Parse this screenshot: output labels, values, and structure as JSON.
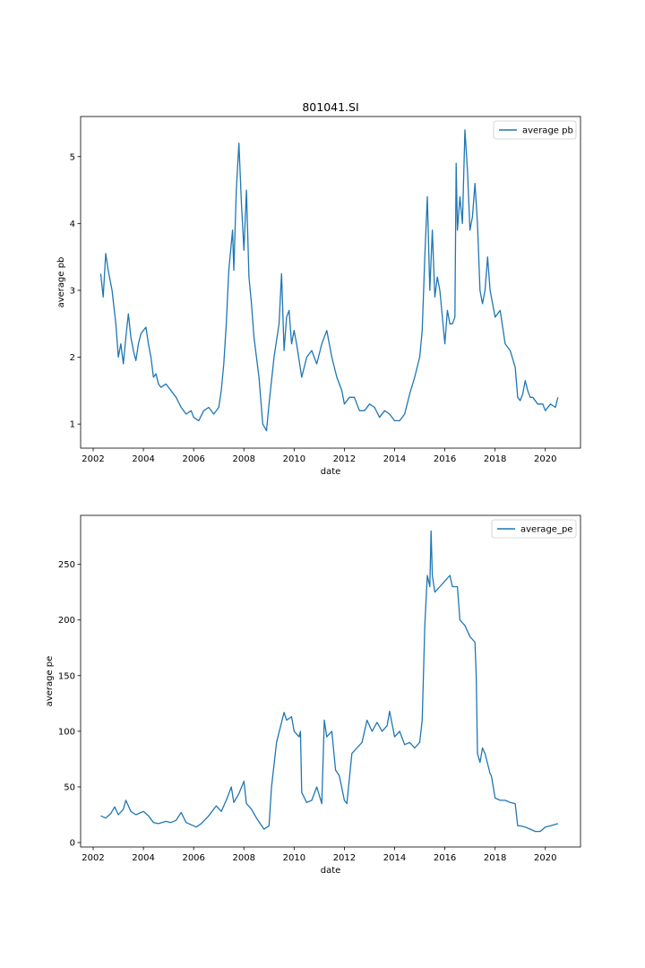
{
  "figure_title": "801041.SI",
  "line_color": "#1f77b4",
  "chart_data": [
    {
      "type": "line",
      "title": "801041.SI",
      "xlabel": "date",
      "ylabel": "average pb",
      "legend": "top-right",
      "grid": false,
      "xlim": [
        2001.5,
        2021.4
      ],
      "ylim": [
        0.64,
        5.6
      ],
      "xticks": [
        2002,
        2004,
        2006,
        2008,
        2010,
        2012,
        2014,
        2016,
        2018,
        2020
      ],
      "yticks": [
        1,
        2,
        3,
        4,
        5
      ],
      "series": [
        {
          "name": "average pb",
          "x": [
            2002.3,
            2002.4,
            2002.5,
            2002.6,
            2002.75,
            2002.9,
            2003.0,
            2003.1,
            2003.2,
            2003.3,
            2003.4,
            2003.5,
            2003.6,
            2003.7,
            2003.8,
            2003.9,
            2004.0,
            2004.1,
            2004.2,
            2004.3,
            2004.4,
            2004.5,
            2004.6,
            2004.7,
            2004.9,
            2005.1,
            2005.3,
            2005.5,
            2005.7,
            2005.9,
            2006.0,
            2006.2,
            2006.4,
            2006.6,
            2006.8,
            2007.0,
            2007.1,
            2007.2,
            2007.3,
            2007.4,
            2007.5,
            2007.55,
            2007.6,
            2007.7,
            2007.8,
            2007.9,
            2008.0,
            2008.1,
            2008.2,
            2008.3,
            2008.4,
            2008.6,
            2008.75,
            2008.9,
            2009.0,
            2009.2,
            2009.4,
            2009.5,
            2009.6,
            2009.7,
            2009.8,
            2009.9,
            2010.0,
            2010.1,
            2010.3,
            2010.5,
            2010.7,
            2010.9,
            2011.1,
            2011.3,
            2011.5,
            2011.7,
            2011.9,
            2012.0,
            2012.2,
            2012.4,
            2012.6,
            2012.8,
            2013.0,
            2013.2,
            2013.4,
            2013.6,
            2013.8,
            2014.0,
            2014.2,
            2014.4,
            2014.6,
            2014.8,
            2015.0,
            2015.1,
            2015.2,
            2015.3,
            2015.4,
            2015.5,
            2015.6,
            2015.7,
            2015.8,
            2015.9,
            2016.0,
            2016.1,
            2016.2,
            2016.3,
            2016.4,
            2016.45,
            2016.5,
            2016.6,
            2016.7,
            2016.8,
            2016.9,
            2017.0,
            2017.1,
            2017.2,
            2017.3,
            2017.4,
            2017.5,
            2017.6,
            2017.7,
            2017.8,
            2017.9,
            2018.0,
            2018.2,
            2018.4,
            2018.6,
            2018.8,
            2018.9,
            2019.0,
            2019.1,
            2019.2,
            2019.3,
            2019.4,
            2019.5,
            2019.7,
            2019.9,
            2020.0,
            2020.2,
            2020.4,
            2020.5
          ],
          "values": [
            3.25,
            2.9,
            3.55,
            3.3,
            3.0,
            2.5,
            2.0,
            2.2,
            1.9,
            2.3,
            2.65,
            2.3,
            2.1,
            1.95,
            2.2,
            2.35,
            2.4,
            2.45,
            2.2,
            2.0,
            1.7,
            1.75,
            1.6,
            1.55,
            1.6,
            1.5,
            1.4,
            1.25,
            1.15,
            1.2,
            1.1,
            1.05,
            1.2,
            1.25,
            1.15,
            1.25,
            1.5,
            1.9,
            2.5,
            3.3,
            3.7,
            3.9,
            3.3,
            4.5,
            5.2,
            4.3,
            3.6,
            4.5,
            3.2,
            2.8,
            2.3,
            1.7,
            1.0,
            0.9,
            1.3,
            2.0,
            2.5,
            3.25,
            2.1,
            2.6,
            2.7,
            2.2,
            2.4,
            2.2,
            1.7,
            2.0,
            2.1,
            1.9,
            2.2,
            2.4,
            2.0,
            1.7,
            1.5,
            1.3,
            1.4,
            1.4,
            1.2,
            1.2,
            1.3,
            1.25,
            1.1,
            1.2,
            1.15,
            1.05,
            1.05,
            1.15,
            1.45,
            1.7,
            2.0,
            2.4,
            3.5,
            4.4,
            3.0,
            3.9,
            2.9,
            3.2,
            3.0,
            2.6,
            2.2,
            2.7,
            2.5,
            2.5,
            2.6,
            4.9,
            3.9,
            4.4,
            4.0,
            5.4,
            4.8,
            3.9,
            4.1,
            4.6,
            4.0,
            3.0,
            2.8,
            3.0,
            3.5,
            3.0,
            2.8,
            2.6,
            2.7,
            2.2,
            2.1,
            1.85,
            1.4,
            1.35,
            1.45,
            1.65,
            1.5,
            1.4,
            1.4,
            1.3,
            1.3,
            1.2,
            1.3,
            1.25,
            1.4
          ]
        }
      ]
    },
    {
      "type": "line",
      "title": "",
      "xlabel": "date",
      "ylabel": "average pe",
      "legend": "top-right",
      "grid": false,
      "xlim": [
        2001.5,
        2021.4
      ],
      "ylim": [
        -4,
        294
      ],
      "xticks": [
        2002,
        2004,
        2006,
        2008,
        2010,
        2012,
        2014,
        2016,
        2018,
        2020
      ],
      "yticks": [
        0,
        50,
        100,
        150,
        200,
        250
      ],
      "series": [
        {
          "name": "average_pe",
          "x": [
            2002.3,
            2002.5,
            2002.7,
            2002.85,
            2003.0,
            2003.2,
            2003.3,
            2003.5,
            2003.7,
            2004.0,
            2004.2,
            2004.4,
            2004.6,
            2004.9,
            2005.1,
            2005.3,
            2005.5,
            2005.7,
            2005.9,
            2006.1,
            2006.3,
            2006.6,
            2006.9,
            2007.1,
            2007.3,
            2007.5,
            2007.6,
            2007.8,
            2008.0,
            2008.1,
            2008.3,
            2008.5,
            2008.8,
            2009.0,
            2009.1,
            2009.3,
            2009.6,
            2009.7,
            2009.9,
            2010.0,
            2010.2,
            2010.25,
            2010.3,
            2010.5,
            2010.7,
            2010.9,
            2011.1,
            2011.2,
            2011.3,
            2011.5,
            2011.65,
            2011.8,
            2012.0,
            2012.1,
            2012.3,
            2012.5,
            2012.7,
            2012.9,
            2013.1,
            2013.3,
            2013.5,
            2013.7,
            2013.8,
            2014.0,
            2014.2,
            2014.4,
            2014.6,
            2014.8,
            2015.0,
            2015.1,
            2015.2,
            2015.3,
            2015.4,
            2015.45,
            2015.5,
            2015.6,
            2015.8,
            2016.0,
            2016.2,
            2016.3,
            2016.5,
            2016.6,
            2016.8,
            2017.0,
            2017.2,
            2017.25,
            2017.3,
            2017.4,
            2017.5,
            2017.6,
            2017.8,
            2017.85,
            2018.0,
            2018.2,
            2018.4,
            2018.6,
            2018.8,
            2018.9,
            2019.0,
            2019.2,
            2019.4,
            2019.6,
            2019.8,
            2020.0,
            2020.2,
            2020.5
          ],
          "values": [
            24,
            22,
            26,
            32,
            25,
            30,
            38,
            28,
            25,
            28,
            24,
            18,
            17,
            19,
            18,
            20,
            27,
            18,
            16,
            14,
            17,
            24,
            33,
            28,
            38,
            50,
            36,
            44,
            55,
            35,
            30,
            22,
            12,
            15,
            50,
            90,
            117,
            110,
            113,
            100,
            95,
            100,
            45,
            36,
            38,
            50,
            35,
            110,
            95,
            100,
            65,
            60,
            38,
            35,
            80,
            85,
            90,
            110,
            100,
            108,
            100,
            105,
            118,
            95,
            100,
            88,
            90,
            85,
            90,
            110,
            195,
            240,
            230,
            280,
            240,
            225,
            230,
            235,
            240,
            230,
            230,
            200,
            195,
            185,
            180,
            150,
            80,
            72,
            85,
            80,
            62,
            60,
            40,
            38,
            38,
            36,
            35,
            15,
            15,
            14,
            12,
            10,
            10,
            14,
            15,
            17
          ]
        }
      ]
    }
  ]
}
